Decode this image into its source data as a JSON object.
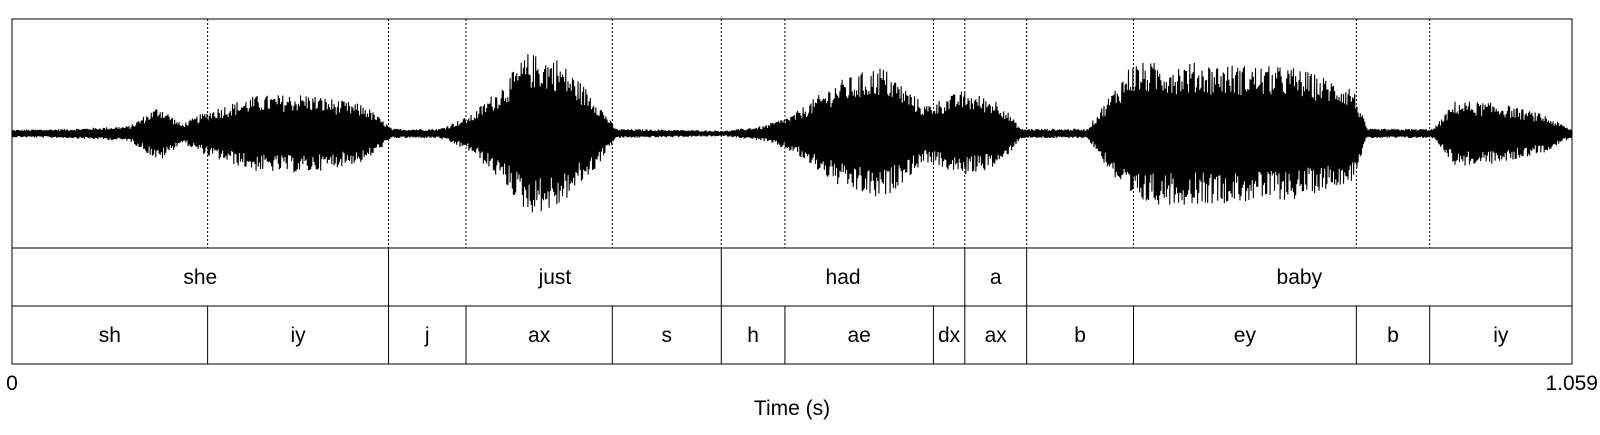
{
  "chart_data": {
    "type": "waveform",
    "xlabel": "Time (s)",
    "xlim": [
      0,
      1.059
    ],
    "tick_labels": {
      "start": "0",
      "end": "1.059"
    },
    "color": "#000000",
    "waveform_envelope": [
      {
        "t": 0.0,
        "amp": 0.04
      },
      {
        "t": 0.04,
        "amp": 0.05
      },
      {
        "t": 0.08,
        "amp": 0.08
      },
      {
        "t": 0.1,
        "amp": 0.3
      },
      {
        "t": 0.115,
        "amp": 0.1
      },
      {
        "t": 0.134,
        "amp": 0.25
      },
      {
        "t": 0.165,
        "amp": 0.4
      },
      {
        "t": 0.2,
        "amp": 0.42
      },
      {
        "t": 0.24,
        "amp": 0.3
      },
      {
        "t": 0.258,
        "amp": 0.05
      },
      {
        "t": 0.29,
        "amp": 0.05
      },
      {
        "t": 0.312,
        "amp": 0.2
      },
      {
        "t": 0.335,
        "amp": 0.55
      },
      {
        "t": 0.35,
        "amp": 0.85
      },
      {
        "t": 0.37,
        "amp": 0.8
      },
      {
        "t": 0.395,
        "amp": 0.4
      },
      {
        "t": 0.41,
        "amp": 0.05
      },
      {
        "t": 0.485,
        "amp": 0.03
      },
      {
        "t": 0.51,
        "amp": 0.08
      },
      {
        "t": 0.53,
        "amp": 0.2
      },
      {
        "t": 0.56,
        "amp": 0.55
      },
      {
        "t": 0.59,
        "amp": 0.72
      },
      {
        "t": 0.62,
        "amp": 0.3
      },
      {
        "t": 0.645,
        "amp": 0.45
      },
      {
        "t": 0.67,
        "amp": 0.35
      },
      {
        "t": 0.685,
        "amp": 0.05
      },
      {
        "t": 0.73,
        "amp": 0.05
      },
      {
        "t": 0.76,
        "amp": 0.75
      },
      {
        "t": 0.8,
        "amp": 0.75
      },
      {
        "t": 0.87,
        "amp": 0.7
      },
      {
        "t": 0.91,
        "amp": 0.5
      },
      {
        "t": 0.92,
        "amp": 0.05
      },
      {
        "t": 0.965,
        "amp": 0.05
      },
      {
        "t": 0.98,
        "amp": 0.35
      },
      {
        "t": 1.01,
        "amp": 0.32
      },
      {
        "t": 1.04,
        "amp": 0.2
      },
      {
        "t": 1.059,
        "amp": 0.04
      }
    ],
    "boundaries": [
      0.1328,
      0.2556,
      0.3082,
      0.4075,
      0.4815,
      0.5247,
      0.6255,
      0.6468,
      0.6888,
      0.7613,
      0.9126,
      0.9624
    ],
    "tiers": [
      {
        "name": "words",
        "intervals": [
          {
            "start": 0.0,
            "end": 0.2556,
            "label": "she"
          },
          {
            "start": 0.2556,
            "end": 0.4815,
            "label": "just"
          },
          {
            "start": 0.4815,
            "end": 0.6468,
            "label": "had"
          },
          {
            "start": 0.6468,
            "end": 0.6888,
            "label": "a"
          },
          {
            "start": 0.6888,
            "end": 1.059,
            "label": "baby"
          }
        ]
      },
      {
        "name": "phones",
        "intervals": [
          {
            "start": 0.0,
            "end": 0.1328,
            "label": "sh"
          },
          {
            "start": 0.1328,
            "end": 0.2556,
            "label": "iy"
          },
          {
            "start": 0.2556,
            "end": 0.3082,
            "label": "j"
          },
          {
            "start": 0.3082,
            "end": 0.4075,
            "label": "ax"
          },
          {
            "start": 0.4075,
            "end": 0.4815,
            "label": "s"
          },
          {
            "start": 0.4815,
            "end": 0.5247,
            "label": "h"
          },
          {
            "start": 0.5247,
            "end": 0.6255,
            "label": "ae"
          },
          {
            "start": 0.6255,
            "end": 0.6468,
            "label": "dx"
          },
          {
            "start": 0.6468,
            "end": 0.6888,
            "label": "ax"
          },
          {
            "start": 0.6888,
            "end": 0.7613,
            "label": "b"
          },
          {
            "start": 0.7613,
            "end": 0.9126,
            "label": "ey"
          },
          {
            "start": 0.9126,
            "end": 0.9624,
            "label": "b"
          },
          {
            "start": 0.9624,
            "end": 1.059,
            "label": "iy"
          }
        ]
      }
    ]
  }
}
